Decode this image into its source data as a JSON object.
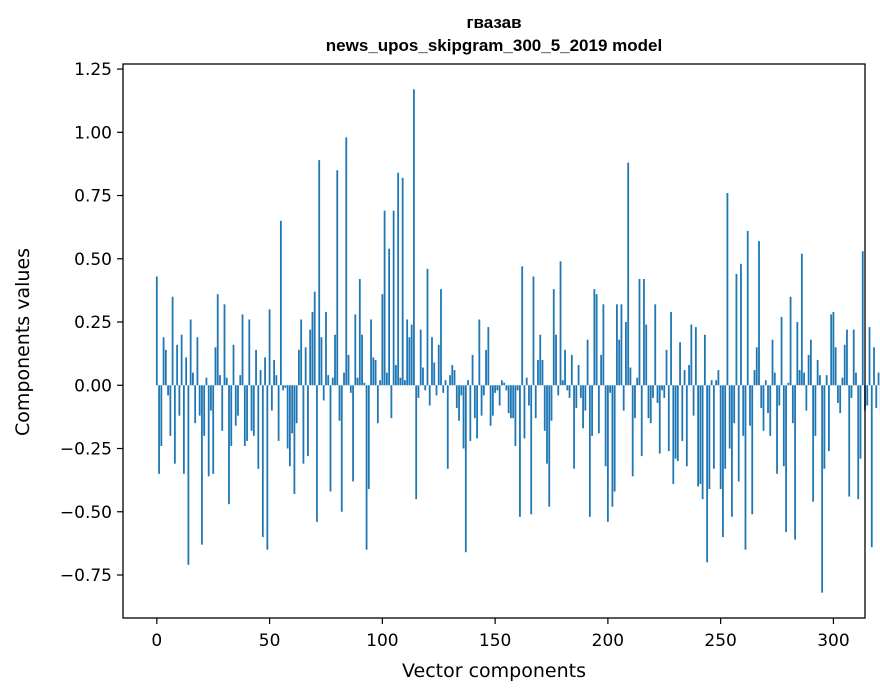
{
  "chart_data": {
    "type": "bar",
    "title_line1": "гвазав",
    "title_line2": "news_upos_skipgram_300_5_2019 model",
    "xlabel": "Vector components",
    "ylabel": "Components values",
    "xlim": [
      -15,
      314
    ],
    "ylim": [
      -0.92,
      1.27
    ],
    "xticks": [
      0,
      50,
      100,
      150,
      200,
      250,
      300
    ],
    "xtick_labels": [
      "0",
      "50",
      "100",
      "150",
      "200",
      "250",
      "300"
    ],
    "yticks": [
      -0.75,
      -0.5,
      -0.25,
      0.0,
      0.25,
      0.5,
      0.75,
      1.0,
      1.25
    ],
    "ytick_labels": [
      "−0.75",
      "−0.50",
      "−0.25",
      "0.00",
      "0.25",
      "0.50",
      "0.75",
      "1.00",
      "1.25"
    ],
    "bar_color": "#1f77b4",
    "values": [
      0.43,
      -0.35,
      -0.24,
      0.19,
      0.14,
      -0.04,
      -0.2,
      0.35,
      -0.31,
      0.16,
      -0.12,
      0.2,
      -0.35,
      0.11,
      -0.71,
      0.26,
      0.05,
      -0.15,
      0.19,
      -0.12,
      -0.63,
      -0.2,
      0.03,
      -0.36,
      -0.1,
      -0.35,
      0.15,
      0.36,
      0.04,
      -0.18,
      0.32,
      0.03,
      -0.47,
      -0.24,
      0.16,
      -0.16,
      -0.12,
      0.04,
      0.28,
      -0.24,
      -0.22,
      0.26,
      -0.18,
      -0.2,
      0.14,
      -0.33,
      0.06,
      -0.6,
      0.11,
      -0.65,
      0.3,
      -0.1,
      0.1,
      0.04,
      -0.22,
      0.65,
      -0.02,
      -0.01,
      -0.25,
      -0.32,
      -0.19,
      -0.43,
      -0.15,
      0.14,
      0.26,
      -0.31,
      0.15,
      -0.28,
      0.22,
      0.29,
      0.37,
      -0.54,
      0.89,
      0.19,
      -0.06,
      0.29,
      0.04,
      -0.42,
      0.03,
      0.2,
      0.85,
      -0.14,
      -0.5,
      0.05,
      0.98,
      0.12,
      -0.03,
      -0.38,
      0.28,
      0.03,
      0.42,
      0.2,
      0.01,
      -0.65,
      -0.41,
      0.26,
      0.11,
      0.1,
      -0.15,
      0.02,
      0.36,
      0.69,
      0.05,
      0.54,
      -0.13,
      0.69,
      0.08,
      0.84,
      0.03,
      0.82,
      0.02,
      0.26,
      0.19,
      0.24,
      1.17,
      -0.45,
      -0.05,
      0.22,
      0.07,
      -0.02,
      0.46,
      -0.08,
      0.19,
      0.09,
      -0.04,
      0.16,
      0.38,
      -0.03,
      0.02,
      -0.33,
      0.04,
      0.08,
      0.06,
      -0.09,
      -0.14,
      -0.04,
      -0.25,
      -0.66,
      0.02,
      -0.22,
      0.12,
      -0.13,
      -0.21,
      0.26,
      -0.12,
      -0.04,
      0.14,
      0.23,
      -0.16,
      -0.12,
      -0.03,
      -0.02,
      -0.08,
      0.02,
      0.01,
      -0.02,
      -0.11,
      -0.13,
      -0.13,
      -0.24,
      -0.02,
      -0.52,
      0.47,
      -0.21,
      0.03,
      -0.08,
      -0.51,
      0.43,
      -0.13,
      0.1,
      0.2,
      0.1,
      -0.18,
      -0.31,
      -0.48,
      -0.14,
      0.38,
      0.2,
      -0.04,
      0.49,
      0.02,
      0.14,
      -0.02,
      -0.05,
      0.12,
      -0.33,
      -0.09,
      0.08,
      -0.05,
      -0.17,
      -0.1,
      0.18,
      -0.52,
      -0.2,
      0.38,
      0.36,
      -0.19,
      0.12,
      0.32,
      -0.32,
      -0.54,
      -0.03,
      -0.48,
      -0.42,
      0.32,
      0.18,
      0.32,
      -0.1,
      0.25,
      0.88,
      0.07,
      -0.36,
      -0.13,
      0.03,
      0.42,
      -0.28,
      0.42,
      0.24,
      -0.13,
      -0.15,
      -0.05,
      0.32,
      -0.07,
      -0.27,
      -0.02,
      -0.05,
      0.14,
      -0.26,
      0.29,
      -0.39,
      -0.29,
      -0.3,
      0.17,
      -0.22,
      0.06,
      -0.32,
      0.08,
      0.24,
      -0.12,
      0.23,
      -0.4,
      -0.39,
      -0.45,
      0.2,
      -0.7,
      -0.41,
      0.02,
      -0.33,
      0.02,
      0.06,
      -0.41,
      -0.6,
      -0.33,
      0.76,
      -0.25,
      -0.52,
      -0.15,
      0.44,
      -0.38,
      0.48,
      -0.2,
      -0.65,
      0.61,
      -0.16,
      -0.51,
      0.06,
      0.15,
      0.57,
      -0.09,
      -0.18,
      0.02,
      -0.11,
      -0.2,
      0.18,
      0.05,
      -0.35,
      -0.08,
      0.27,
      -0.32,
      -0.58,
      0.01,
      0.35,
      -0.15,
      -0.61,
      0.25,
      0.06,
      0.52,
      0.05,
      -0.1,
      0.12,
      0.18,
      -0.46,
      -0.2,
      0.1,
      0.04,
      -0.82,
      -0.33,
      0.04,
      -0.26,
      0.28,
      0.29,
      0.15,
      -0.07,
      -0.11,
      0.03,
      0.16,
      0.22,
      -0.44,
      -0.05,
      0.22,
      0.05,
      -0.45,
      -0.29,
      0.53,
      -0.1,
      -0.08,
      0.23,
      -0.64,
      0.15,
      -0.09,
      0.05,
      -0.11,
      0.02,
      -0.15
    ]
  }
}
